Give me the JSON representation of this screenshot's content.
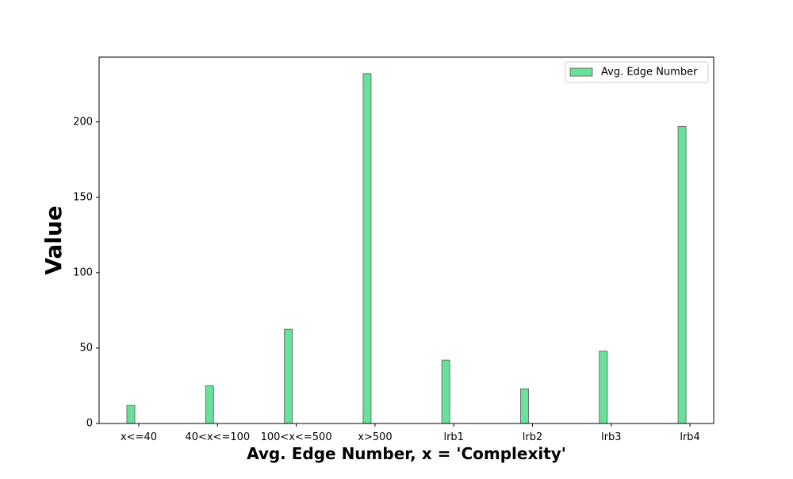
{
  "chart_data": {
    "type": "bar",
    "title": "",
    "xlabel": "Avg. Edge Number, x = 'Complexity'",
    "ylabel": "Value",
    "categories": [
      "x<=40",
      "40<x<=100",
      "100<x<=500",
      "x>500",
      "lrb1",
      "lrb2",
      "lrb3",
      "lrb4"
    ],
    "series": [
      {
        "name": "Avg. Edge Number",
        "values": [
          12,
          25,
          62.5,
          232,
          42,
          23,
          48,
          197
        ],
        "color": "#66e29a",
        "edge_color": "#707070"
      }
    ],
    "ylim": [
      0,
      243
    ],
    "yticks": [
      0,
      50,
      100,
      150,
      200
    ],
    "grid": false,
    "legend_position": "top-right"
  }
}
